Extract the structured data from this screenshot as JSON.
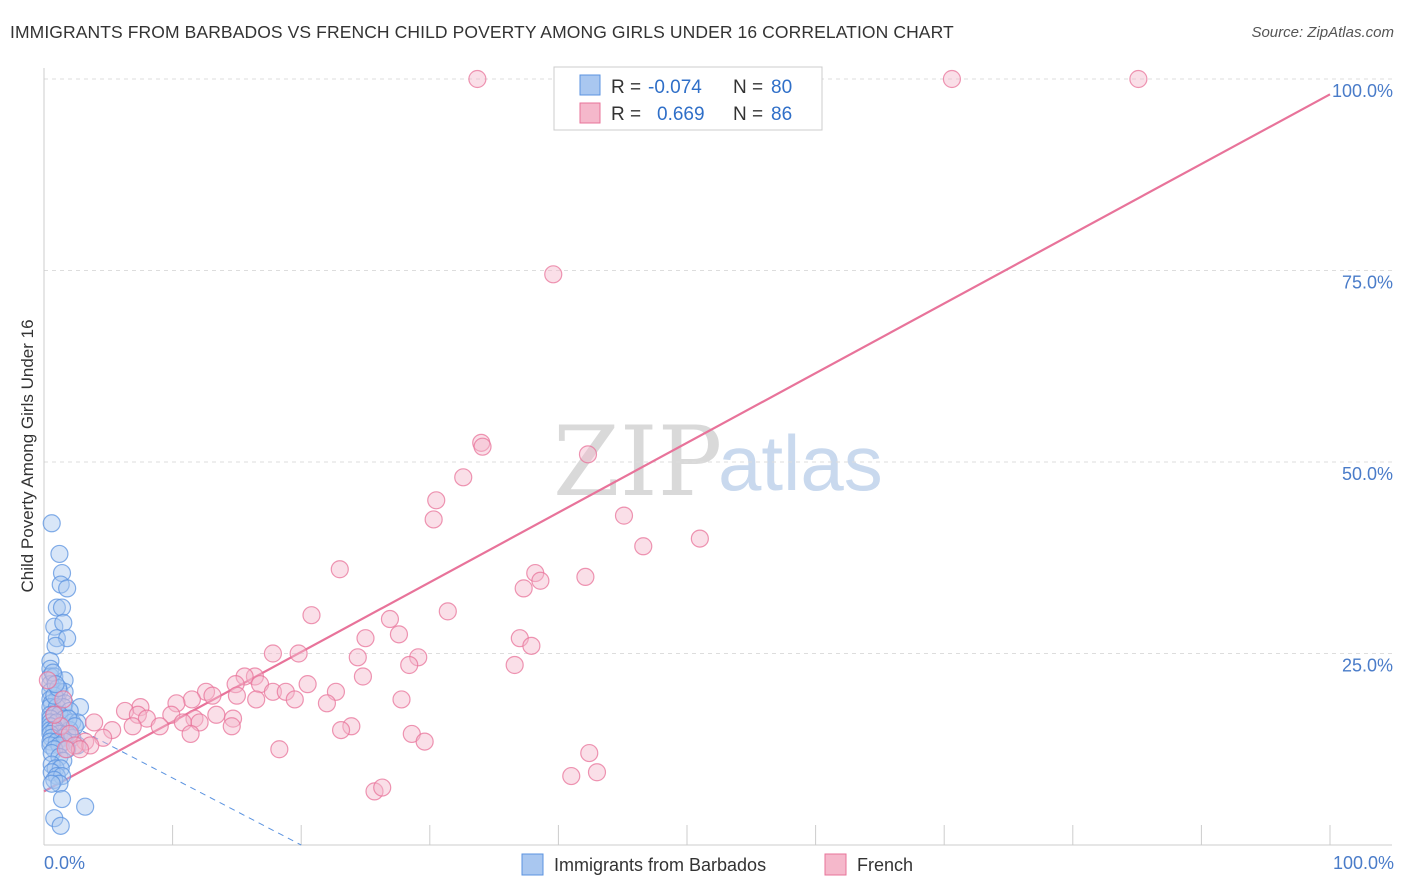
{
  "title": "IMMIGRANTS FROM BARBADOS VS FRENCH CHILD POVERTY AMONG GIRLS UNDER 16 CORRELATION CHART",
  "source": "Source: ZipAtlas.com",
  "watermark": {
    "zip": "ZIP",
    "atlas": "atlas"
  },
  "colors": {
    "blue": "#5b93e0",
    "blue_fill": "#a9c7f0",
    "pink": "#e8739a",
    "pink_fill": "#f5b8cb"
  },
  "chart_data": {
    "type": "scatter",
    "title": "IMMIGRANTS FROM BARBADOS VS FRENCH CHILD POVERTY AMONG GIRLS UNDER 16 CORRELATION CHART",
    "xlabel": "",
    "ylabel": "Child Poverty Among Girls Under 16",
    "xlim": [
      0,
      100
    ],
    "ylim": [
      0,
      100
    ],
    "x_tick_labels": [
      "0.0%",
      "100.0%"
    ],
    "y_ticks": [
      25,
      50,
      75,
      100
    ],
    "y_tick_labels": [
      "25.0%",
      "50.0%",
      "75.0%",
      "100.0%"
    ],
    "legend": {
      "r_label": "R =",
      "n_label": "N =",
      "rows": [
        {
          "name": "Immigrants from Barbados",
          "r": "-0.074",
          "n": "80"
        },
        {
          "name": "French",
          "r": "0.669",
          "n": "86"
        }
      ]
    },
    "series": [
      {
        "name": "Immigrants from Barbados",
        "color": "#5b93e0",
        "trendline": {
          "x0": 0,
          "y0": 17.5,
          "x1": 20,
          "y1": 0,
          "style": "dashed"
        },
        "points": [
          [
            0.6,
            42
          ],
          [
            1.2,
            38
          ],
          [
            1.4,
            35.5
          ],
          [
            1.3,
            34
          ],
          [
            1.8,
            33.5
          ],
          [
            1.0,
            31
          ],
          [
            1.4,
            31
          ],
          [
            0.8,
            28.5
          ],
          [
            1.5,
            29
          ],
          [
            1.0,
            27
          ],
          [
            1.8,
            27
          ],
          [
            0.9,
            26
          ],
          [
            0.5,
            24
          ],
          [
            0.5,
            23
          ],
          [
            0.5,
            22
          ],
          [
            0.8,
            22
          ],
          [
            1.6,
            21.5
          ],
          [
            0.5,
            21
          ],
          [
            0.5,
            20
          ],
          [
            1.2,
            20
          ],
          [
            1.6,
            20
          ],
          [
            0.5,
            19
          ],
          [
            1.0,
            19
          ],
          [
            0.6,
            18.5
          ],
          [
            1.6,
            18.5
          ],
          [
            2.8,
            18
          ],
          [
            0.5,
            18
          ],
          [
            1.0,
            18
          ],
          [
            1.5,
            18
          ],
          [
            2.0,
            17.5
          ],
          [
            0.5,
            17
          ],
          [
            0.8,
            17
          ],
          [
            1.2,
            17
          ],
          [
            0.5,
            16.5
          ],
          [
            1.6,
            16.5
          ],
          [
            2.2,
            16
          ],
          [
            2.6,
            16
          ],
          [
            0.5,
            16
          ],
          [
            1.0,
            16
          ],
          [
            0.5,
            15.5
          ],
          [
            1.3,
            15.5
          ],
          [
            2.0,
            15
          ],
          [
            0.5,
            15
          ],
          [
            0.8,
            15
          ],
          [
            1.2,
            14.5
          ],
          [
            1.8,
            14.5
          ],
          [
            0.5,
            14.5
          ],
          [
            0.6,
            14
          ],
          [
            1.5,
            14
          ],
          [
            2.2,
            14
          ],
          [
            0.5,
            13.5
          ],
          [
            1.0,
            13.5
          ],
          [
            1.6,
            13.5
          ],
          [
            2.6,
            13
          ],
          [
            0.5,
            13
          ],
          [
            1.2,
            13
          ],
          [
            0.8,
            12.5
          ],
          [
            1.8,
            12.5
          ],
          [
            0.6,
            12
          ],
          [
            1.2,
            11.5
          ],
          [
            1.5,
            11
          ],
          [
            0.6,
            10.5
          ],
          [
            0.9,
            10
          ],
          [
            1.3,
            10
          ],
          [
            0.6,
            9.5
          ],
          [
            1.0,
            9
          ],
          [
            1.4,
            9
          ],
          [
            0.8,
            8.5
          ],
          [
            1.2,
            8
          ],
          [
            0.6,
            8
          ],
          [
            1.4,
            6
          ],
          [
            3.2,
            5
          ],
          [
            0.8,
            3.5
          ],
          [
            1.3,
            2.5
          ],
          [
            0.8,
            19.5
          ],
          [
            1.1,
            20.5
          ],
          [
            0.7,
            22.5
          ],
          [
            1.9,
            16.5
          ],
          [
            2.4,
            15.5
          ],
          [
            0.9,
            21
          ]
        ]
      },
      {
        "name": "French",
        "color": "#e8739a",
        "trendline": {
          "x0": 0,
          "y0": 7,
          "x1": 100,
          "y1": 98,
          "style": "solid"
        },
        "points": [
          [
            33.7,
            100
          ],
          [
            70.6,
            100
          ],
          [
            85.1,
            100
          ],
          [
            39.6,
            74.5
          ],
          [
            34.0,
            52.5
          ],
          [
            34.1,
            52.0
          ],
          [
            42.3,
            51
          ],
          [
            32.6,
            48
          ],
          [
            30.5,
            45
          ],
          [
            30.3,
            42.5
          ],
          [
            45.1,
            43
          ],
          [
            51.0,
            40
          ],
          [
            46.6,
            39
          ],
          [
            23.0,
            36
          ],
          [
            38.2,
            35.5
          ],
          [
            42.1,
            35
          ],
          [
            38.6,
            34.5
          ],
          [
            37.3,
            33.5
          ],
          [
            31.4,
            30.5
          ],
          [
            20.8,
            30
          ],
          [
            26.9,
            29.5
          ],
          [
            27.6,
            27.5
          ],
          [
            37.0,
            27
          ],
          [
            25.0,
            27
          ],
          [
            37.9,
            26
          ],
          [
            17.8,
            25
          ],
          [
            19.8,
            25
          ],
          [
            24.4,
            24.5
          ],
          [
            29.1,
            24.5
          ],
          [
            28.4,
            23.5
          ],
          [
            36.6,
            23.5
          ],
          [
            16.4,
            22
          ],
          [
            24.8,
            22
          ],
          [
            15.6,
            22
          ],
          [
            14.9,
            21
          ],
          [
            16.8,
            21
          ],
          [
            20.5,
            21
          ],
          [
            12.6,
            20
          ],
          [
            17.8,
            20
          ],
          [
            18.8,
            20
          ],
          [
            22.7,
            20
          ],
          [
            13.1,
            19.5
          ],
          [
            11.5,
            19
          ],
          [
            15.0,
            19.5
          ],
          [
            19.5,
            19
          ],
          [
            27.8,
            19
          ],
          [
            16.5,
            19
          ],
          [
            22.0,
            18.5
          ],
          [
            7.5,
            18
          ],
          [
            10.3,
            18.5
          ],
          [
            6.3,
            17.5
          ],
          [
            13.4,
            17
          ],
          [
            7.3,
            17
          ],
          [
            9.9,
            17
          ],
          [
            11.7,
            16.5
          ],
          [
            14.7,
            16.5
          ],
          [
            8.0,
            16.5
          ],
          [
            10.8,
            16
          ],
          [
            12.1,
            16
          ],
          [
            3.9,
            16
          ],
          [
            6.9,
            15.5
          ],
          [
            1.3,
            15.5
          ],
          [
            9.0,
            15.5
          ],
          [
            14.6,
            15.5
          ],
          [
            23.9,
            15.5
          ],
          [
            23.1,
            15
          ],
          [
            5.3,
            15
          ],
          [
            11.4,
            14.5
          ],
          [
            2.0,
            14.5
          ],
          [
            28.6,
            14.5
          ],
          [
            4.6,
            14
          ],
          [
            3.2,
            13.5
          ],
          [
            29.6,
            13.5
          ],
          [
            2.4,
            13
          ],
          [
            3.6,
            13
          ],
          [
            2.8,
            12.5
          ],
          [
            1.7,
            12.5
          ],
          [
            18.3,
            12.5
          ],
          [
            42.4,
            12
          ],
          [
            41.0,
            9
          ],
          [
            43.0,
            9.5
          ],
          [
            25.7,
            7
          ],
          [
            26.3,
            7.5
          ],
          [
            0.3,
            21.5
          ],
          [
            1.5,
            19
          ],
          [
            0.8,
            17
          ]
        ]
      }
    ]
  }
}
